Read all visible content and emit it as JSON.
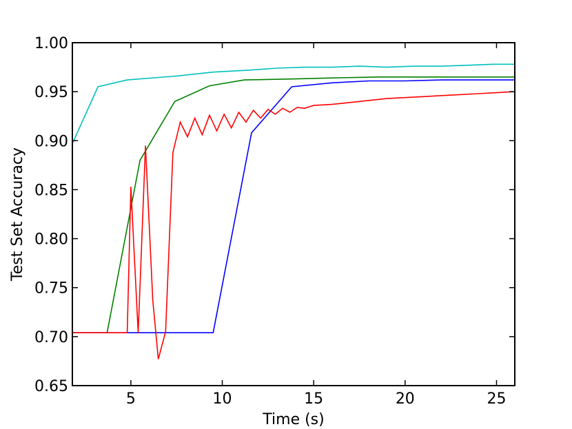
{
  "chart_data": {
    "type": "line",
    "title": "",
    "xlabel": "Time (s)",
    "ylabel": "Test Set Accuracy",
    "xlim": [
      1.8,
      26
    ],
    "ylim": [
      0.65,
      1.0
    ],
    "xticks": [
      5,
      10,
      15,
      20,
      25
    ],
    "xtick_labels": [
      "5",
      "10",
      "15",
      "20",
      "25"
    ],
    "yticks": [
      0.65,
      0.7,
      0.75,
      0.8,
      0.85,
      0.9,
      0.95,
      1.0
    ],
    "ytick_labels": [
      "0.65",
      "0.70",
      "0.75",
      "0.80",
      "0.85",
      "0.90",
      "0.95",
      "1.00"
    ],
    "grid": false,
    "series": [
      {
        "color": "#00bfbf",
        "x": [
          1.8,
          3.2,
          4.8,
          7.5,
          9.5,
          11.5,
          13.0,
          14.5,
          16.0,
          17.5,
          19.0,
          20.5,
          22.0,
          23.5,
          24.8,
          26.0
        ],
        "y": [
          0.897,
          0.955,
          0.962,
          0.966,
          0.97,
          0.972,
          0.974,
          0.975,
          0.975,
          0.976,
          0.975,
          0.976,
          0.976,
          0.977,
          0.978,
          0.978
        ]
      },
      {
        "color": "#008000",
        "x": [
          1.8,
          3.7,
          5.5,
          7.4,
          9.3,
          11.2,
          14.0,
          16.0,
          18.5,
          21.0,
          23.5,
          26.0
        ],
        "y": [
          0.704,
          0.704,
          0.88,
          0.94,
          0.956,
          0.962,
          0.963,
          0.964,
          0.965,
          0.965,
          0.965,
          0.965
        ]
      },
      {
        "color": "#0000ff",
        "x": [
          1.8,
          9.5,
          11.6,
          13.8,
          16.0,
          18.0,
          20.0,
          22.0,
          24.0,
          26.0
        ],
        "y": [
          0.704,
          0.704,
          0.908,
          0.955,
          0.959,
          0.961,
          0.961,
          0.962,
          0.962,
          0.962
        ]
      },
      {
        "color": "#ff0000",
        "x": [
          1.8,
          4.8,
          5.0,
          5.4,
          5.8,
          6.2,
          6.5,
          6.9,
          7.3,
          7.7,
          8.1,
          8.5,
          8.9,
          9.3,
          9.7,
          10.1,
          10.5,
          10.9,
          11.3,
          11.7,
          12.1,
          12.5,
          12.9,
          13.3,
          13.7,
          14.1,
          14.5,
          15.0,
          16.0,
          17.0,
          18.0,
          19.0,
          20.0,
          21.0,
          22.0,
          23.0,
          24.0,
          25.0,
          26.0
        ],
        "y": [
          0.704,
          0.704,
          0.853,
          0.704,
          0.895,
          0.737,
          0.677,
          0.705,
          0.888,
          0.919,
          0.904,
          0.923,
          0.906,
          0.926,
          0.91,
          0.927,
          0.913,
          0.929,
          0.919,
          0.931,
          0.923,
          0.932,
          0.927,
          0.933,
          0.929,
          0.934,
          0.933,
          0.936,
          0.937,
          0.939,
          0.941,
          0.943,
          0.944,
          0.945,
          0.946,
          0.947,
          0.948,
          0.949,
          0.95
        ]
      }
    ]
  }
}
